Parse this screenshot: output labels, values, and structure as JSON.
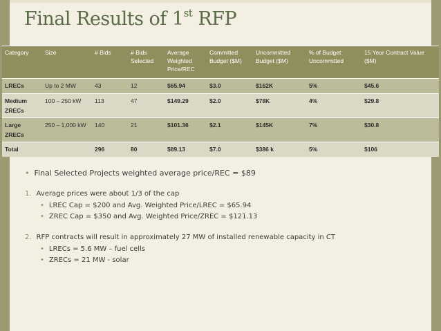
{
  "title": {
    "text": "Final Results of 1",
    "sup": "st",
    "rest": " RFP"
  },
  "table": {
    "headers": [
      "Category",
      "Size",
      "# Bids",
      "# Bids Selected",
      "Average Weighted Price/REC",
      "Committed Budget ($M)",
      "Uncommitted Budget ($M)",
      "% of Budget Uncommitted",
      "15 Year Contract Value ($M)"
    ],
    "rows": [
      [
        "LRECs",
        "Up to 2 MW",
        "43",
        "12",
        "$65.94",
        "$3.0",
        "$162K",
        "5%",
        "$45.6"
      ],
      [
        "Medium ZRECs",
        "100 – 250 kW",
        "113",
        "47",
        "$149.29",
        "$2.0",
        "$78K",
        "4%",
        "$29.8"
      ],
      [
        "Large ZRECs",
        "250 – 1,000 kW",
        "140",
        "21",
        "$101.36",
        "$2.1",
        "$145K",
        "7%",
        "$30.8"
      ],
      [
        "Total",
        "",
        "296",
        "80",
        "$89.13",
        "$7.0",
        "$386 k",
        "5%",
        "$106"
      ]
    ]
  },
  "bullets": {
    "main": "Final Selected Projects weighted average price/REC = $89",
    "p1": {
      "marker": "1.",
      "text": "Average prices were about 1/3 of the cap",
      "subs": [
        "LREC Cap = $200 and Avg. Weighted Price/LREC = $65.94",
        "ZREC Cap = $350 and Avg. Weighted Price/ZREC = $121.13"
      ]
    },
    "p2": {
      "marker": "2.",
      "text": "RFP contracts will result in approximately 27 MW of installed renewable capacity in CT",
      "subs": [
        "LRECs = 5.6 MW – fuel cells",
        "ZRECs = 21 MW - solar"
      ]
    }
  },
  "colors": {
    "accent": "#8f8e5c",
    "title": "#5b6b47",
    "band_dark": "#bdbc9a",
    "band_light": "#dad9c6"
  }
}
